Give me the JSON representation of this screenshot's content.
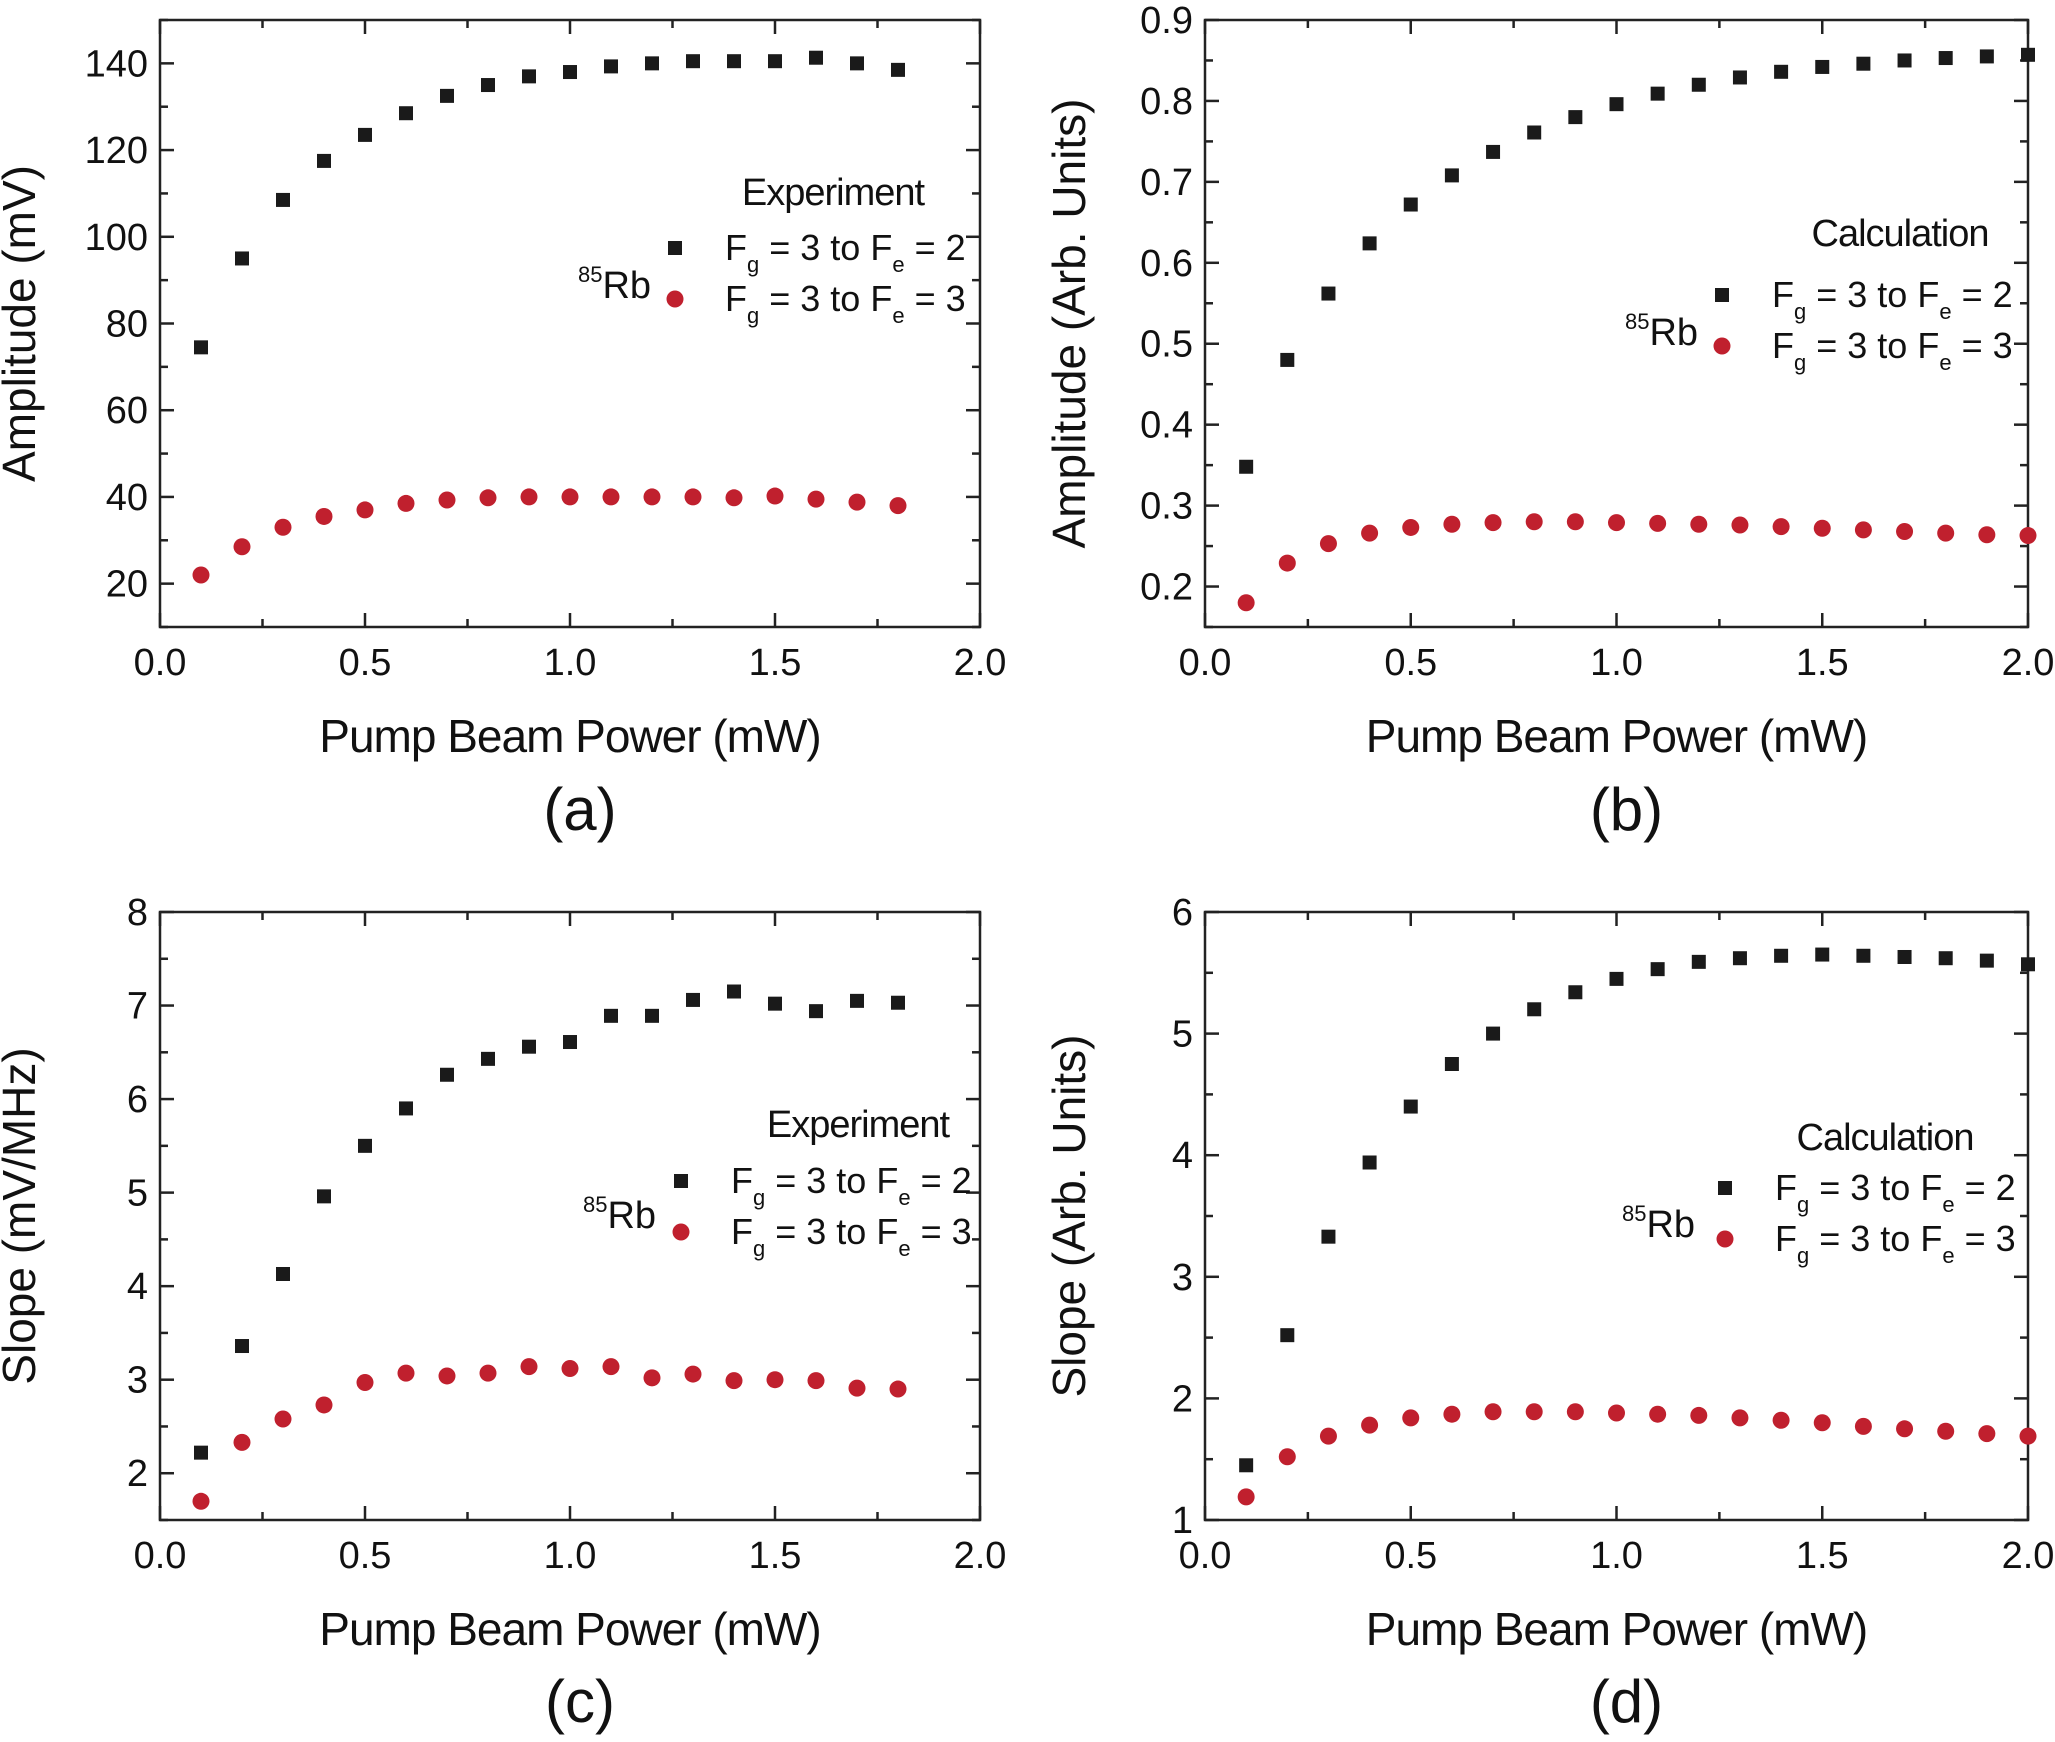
{
  "colors": {
    "series_a": "#1a1a1a",
    "series_b": "#c0202e",
    "axis": "#222222",
    "background": "#ffffff"
  },
  "chart_data": [
    {
      "id": "a",
      "type": "scatter",
      "caption": "(a)",
      "note": "Experiment",
      "xlabel": "Pump Beam Power (mW)",
      "ylabel": "Amplitude (mV)",
      "xlim": [
        0.0,
        2.0
      ],
      "ylim": [
        10,
        150
      ],
      "xticks": [
        "0.0",
        "0.5",
        "1.0",
        "1.5",
        "2.0"
      ],
      "xtick_values": [
        0.0,
        0.5,
        1.0,
        1.5,
        2.0
      ],
      "yticks": [
        "20",
        "40",
        "60",
        "80",
        "100",
        "120",
        "140"
      ],
      "ytick_values": [
        20,
        40,
        60,
        80,
        100,
        120,
        140
      ],
      "grid": false,
      "legend_position": "right",
      "legend": {
        "isotope_mass": "85",
        "isotope_symbol": "Rb",
        "entries": [
          {
            "F": "F",
            "g": "g",
            "mid": " = 3  to  ",
            "F2": "F",
            "e": "e",
            "end": " = 2"
          },
          {
            "F": "F",
            "g": "g",
            "mid": " = 3  to  ",
            "F2": "F",
            "e": "e",
            "end": " = 3"
          }
        ]
      },
      "series": [
        {
          "marker": "square",
          "x": [
            0.1,
            0.2,
            0.3,
            0.4,
            0.5,
            0.6,
            0.7,
            0.8,
            0.9,
            1.0,
            1.1,
            1.2,
            1.3,
            1.4,
            1.5,
            1.6,
            1.7,
            1.8
          ],
          "y": [
            74.5,
            95,
            108.5,
            117.5,
            123.5,
            128.5,
            132.5,
            135,
            137,
            138,
            139.3,
            140,
            140.5,
            140.5,
            140.5,
            141.3,
            140,
            138.5
          ]
        },
        {
          "marker": "circle",
          "x": [
            0.1,
            0.2,
            0.3,
            0.4,
            0.5,
            0.6,
            0.7,
            0.8,
            0.9,
            1.0,
            1.1,
            1.2,
            1.3,
            1.4,
            1.5,
            1.6,
            1.7,
            1.8
          ],
          "y": [
            22,
            28.5,
            33,
            35.5,
            37,
            38.5,
            39.3,
            39.8,
            40,
            40,
            40,
            40,
            40,
            39.8,
            40.2,
            39.5,
            38.8,
            38
          ]
        }
      ]
    },
    {
      "id": "b",
      "type": "scatter",
      "caption": "(b)",
      "note": "Calculation",
      "xlabel": "Pump Beam Power (mW)",
      "ylabel": "Amplitude (Arb. Units)",
      "xlim": [
        0.0,
        2.0
      ],
      "ylim": [
        0.15,
        0.9
      ],
      "xticks": [
        "0.0",
        "0.5",
        "1.0",
        "1.5",
        "2.0"
      ],
      "xtick_values": [
        0.0,
        0.5,
        1.0,
        1.5,
        2.0
      ],
      "yticks": [
        "0.2",
        "0.3",
        "0.4",
        "0.5",
        "0.6",
        "0.7",
        "0.8",
        "0.9"
      ],
      "ytick_values": [
        0.2,
        0.3,
        0.4,
        0.5,
        0.6,
        0.7,
        0.8,
        0.9
      ],
      "grid": false,
      "legend_position": "right",
      "legend": {
        "isotope_mass": "85",
        "isotope_symbol": "Rb",
        "entries": [
          {
            "F": "F",
            "g": "g",
            "mid": " = 3  to  ",
            "F2": "F",
            "e": "e",
            "end": " = 2"
          },
          {
            "F": "F",
            "g": "g",
            "mid": " = 3  to  ",
            "F2": "F",
            "e": "e",
            "end": " = 3"
          }
        ]
      },
      "series": [
        {
          "marker": "square",
          "x": [
            0.1,
            0.2,
            0.3,
            0.4,
            0.5,
            0.6,
            0.7,
            0.8,
            0.9,
            1.0,
            1.1,
            1.2,
            1.3,
            1.4,
            1.5,
            1.6,
            1.7,
            1.8,
            1.9,
            2.0
          ],
          "y": [
            0.348,
            0.48,
            0.562,
            0.624,
            0.672,
            0.708,
            0.737,
            0.761,
            0.78,
            0.796,
            0.809,
            0.82,
            0.829,
            0.836,
            0.842,
            0.846,
            0.85,
            0.853,
            0.855,
            0.857
          ]
        },
        {
          "marker": "circle",
          "x": [
            0.1,
            0.2,
            0.3,
            0.4,
            0.5,
            0.6,
            0.7,
            0.8,
            0.9,
            1.0,
            1.1,
            1.2,
            1.3,
            1.4,
            1.5,
            1.6,
            1.7,
            1.8,
            1.9,
            2.0
          ],
          "y": [
            0.18,
            0.229,
            0.253,
            0.266,
            0.273,
            0.277,
            0.279,
            0.28,
            0.28,
            0.279,
            0.278,
            0.277,
            0.276,
            0.274,
            0.272,
            0.27,
            0.268,
            0.266,
            0.264,
            0.263
          ]
        }
      ]
    },
    {
      "id": "c",
      "type": "scatter",
      "caption": "(c)",
      "note": "Experiment",
      "xlabel": "Pump Beam Power (mW)",
      "ylabel": "Slope (mV/MHz)",
      "xlim": [
        0.0,
        2.0
      ],
      "ylim": [
        1.5,
        8.0
      ],
      "xticks": [
        "0.0",
        "0.5",
        "1.0",
        "1.5",
        "2.0"
      ],
      "xtick_values": [
        0.0,
        0.5,
        1.0,
        1.5,
        2.0
      ],
      "yticks": [
        "2",
        "3",
        "4",
        "5",
        "6",
        "7",
        "8"
      ],
      "ytick_values": [
        2,
        3,
        4,
        5,
        6,
        7,
        8
      ],
      "grid": false,
      "legend_position": "right",
      "legend": {
        "isotope_mass": "85",
        "isotope_symbol": "Rb",
        "entries": [
          {
            "F": "F",
            "g": "g",
            "mid": " = 3  to  ",
            "F2": "F",
            "e": "e",
            "end": " = 2"
          },
          {
            "F": "F",
            "g": "g",
            "mid": " = 3  to  ",
            "F2": "F",
            "e": "e",
            "end": " = 3"
          }
        ]
      },
      "series": [
        {
          "marker": "square",
          "x": [
            0.1,
            0.2,
            0.3,
            0.4,
            0.5,
            0.6,
            0.7,
            0.8,
            0.9,
            1.0,
            1.1,
            1.2,
            1.3,
            1.4,
            1.5,
            1.6,
            1.7,
            1.8
          ],
          "y": [
            2.22,
            3.36,
            4.13,
            4.96,
            5.5,
            5.9,
            6.26,
            6.43,
            6.56,
            6.61,
            6.89,
            6.89,
            7.06,
            7.15,
            7.02,
            6.94,
            7.05,
            7.03
          ]
        },
        {
          "marker": "circle",
          "x": [
            0.1,
            0.2,
            0.3,
            0.4,
            0.5,
            0.6,
            0.7,
            0.8,
            0.9,
            1.0,
            1.1,
            1.2,
            1.3,
            1.4,
            1.5,
            1.6,
            1.7,
            1.8
          ],
          "y": [
            1.7,
            2.33,
            2.58,
            2.73,
            2.97,
            3.07,
            3.04,
            3.07,
            3.14,
            3.12,
            3.14,
            3.02,
            3.06,
            2.99,
            3.0,
            2.99,
            2.91,
            2.9
          ]
        }
      ]
    },
    {
      "id": "d",
      "type": "scatter",
      "caption": "(d)",
      "note": "Calculation",
      "xlabel": "Pump Beam Power (mW)",
      "ylabel": "Slope (Arb. Units)",
      "xlim": [
        0.0,
        2.0
      ],
      "ylim": [
        1,
        6
      ],
      "xticks": [
        "0.0",
        "0.5",
        "1.0",
        "1.5",
        "2.0"
      ],
      "xtick_values": [
        0.0,
        0.5,
        1.0,
        1.5,
        2.0
      ],
      "yticks": [
        "1",
        "2",
        "3",
        "4",
        "5",
        "6"
      ],
      "ytick_values": [
        1,
        2,
        3,
        4,
        5,
        6
      ],
      "grid": false,
      "legend_position": "right",
      "legend": {
        "isotope_mass": "85",
        "isotope_symbol": "Rb",
        "entries": [
          {
            "F": "F",
            "g": "g",
            "mid": " = 3  to  ",
            "F2": "F",
            "e": "e",
            "end": " = 2"
          },
          {
            "F": "F",
            "g": "g",
            "mid": " = 3  to  ",
            "F2": "F",
            "e": "e",
            "end": " = 3"
          }
        ]
      },
      "series": [
        {
          "marker": "square",
          "x": [
            0.1,
            0.2,
            0.3,
            0.4,
            0.5,
            0.6,
            0.7,
            0.8,
            0.9,
            1.0,
            1.1,
            1.2,
            1.3,
            1.4,
            1.5,
            1.6,
            1.7,
            1.8,
            1.9,
            2.0
          ],
          "y": [
            1.45,
            2.52,
            3.33,
            3.94,
            4.4,
            4.75,
            5.0,
            5.2,
            5.34,
            5.45,
            5.53,
            5.59,
            5.62,
            5.64,
            5.65,
            5.64,
            5.63,
            5.62,
            5.6,
            5.57
          ]
        },
        {
          "marker": "circle",
          "x": [
            0.1,
            0.2,
            0.3,
            0.4,
            0.5,
            0.6,
            0.7,
            0.8,
            0.9,
            1.0,
            1.1,
            1.2,
            1.3,
            1.4,
            1.5,
            1.6,
            1.7,
            1.8,
            1.9,
            2.0
          ],
          "y": [
            1.19,
            1.52,
            1.69,
            1.78,
            1.84,
            1.87,
            1.89,
            1.89,
            1.89,
            1.88,
            1.87,
            1.86,
            1.84,
            1.82,
            1.8,
            1.77,
            1.75,
            1.73,
            1.71,
            1.69
          ]
        }
      ]
    }
  ]
}
